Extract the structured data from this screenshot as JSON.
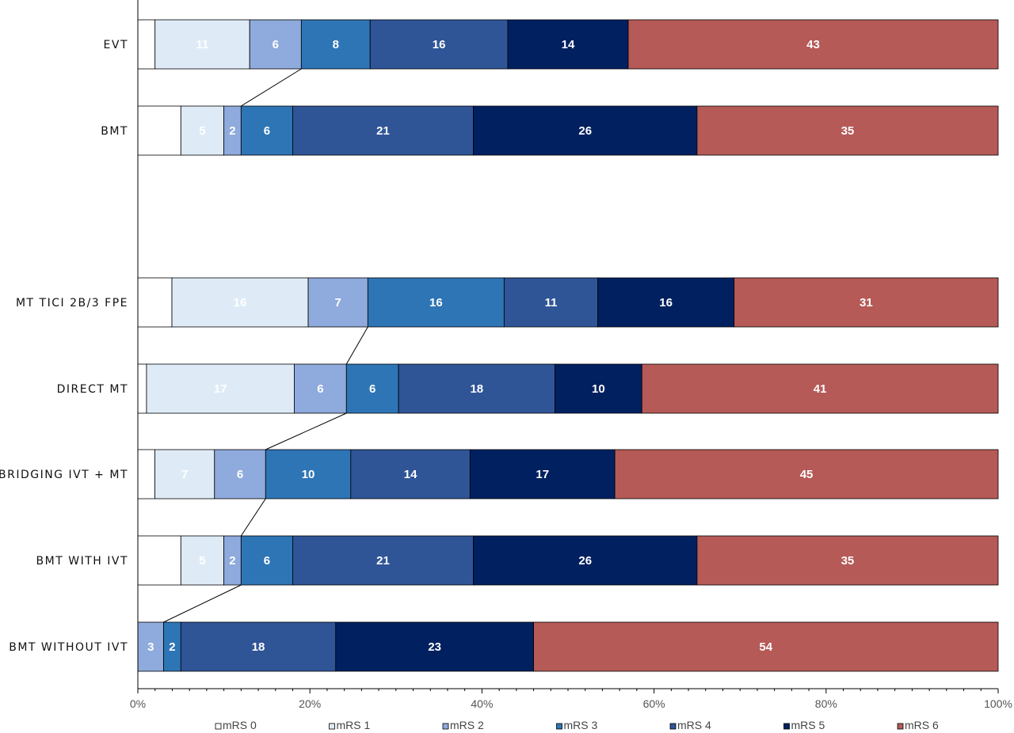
{
  "chart_data": {
    "type": "bar",
    "stacked": true,
    "orientation": "horizontal",
    "percent_scale": true,
    "xlim": [
      0,
      100
    ],
    "x_ticks": [
      "0%",
      "20%",
      "40%",
      "60%",
      "80%",
      "100%"
    ],
    "categories": [
      "EVT",
      "BMT",
      "MT TICI 2B/3 FPE",
      "DIRECT MT",
      "BRIDGING IVT + MT",
      "BMT WITH IVT",
      "BMT WITHOUT IVT"
    ],
    "group_break_after": 1,
    "series": [
      {
        "name": "mRS 0",
        "color": "#ffffff",
        "text_color": "#ffffff",
        "values": [
          2,
          5,
          4,
          1,
          2,
          5,
          0
        ],
        "labels": [
          "",
          "",
          "",
          "",
          "",
          "",
          ""
        ]
      },
      {
        "name": "mRS 1",
        "color": "#deebf7",
        "text_color": "#ffffff",
        "values": [
          11,
          5,
          16,
          17,
          7,
          5,
          0
        ],
        "labels": [
          "11",
          "5",
          "16",
          "17",
          "7",
          "5",
          ""
        ]
      },
      {
        "name": "mRS 2",
        "color": "#8faadc",
        "text_color": "#ffffff",
        "values": [
          6,
          2,
          7,
          6,
          6,
          2,
          3
        ],
        "labels": [
          "6",
          "2",
          "7",
          "6",
          "6",
          "2",
          "3"
        ]
      },
      {
        "name": "mRS 3",
        "color": "#2e75b6",
        "text_color": "#ffffff",
        "values": [
          8,
          6,
          16,
          6,
          10,
          6,
          2
        ],
        "labels": [
          "8",
          "6",
          "16",
          "6",
          "10",
          "6",
          "2"
        ]
      },
      {
        "name": "mRS 4",
        "color": "#2f5597",
        "text_color": "#ffffff",
        "values": [
          16,
          21,
          11,
          18,
          14,
          21,
          18
        ],
        "labels": [
          "16",
          "21",
          "11",
          "18",
          "14",
          "21",
          "18"
        ]
      },
      {
        "name": "mRS 5",
        "color": "#002060",
        "text_color": "#ffffff",
        "values": [
          14,
          26,
          16,
          10,
          17,
          26,
          23
        ],
        "labels": [
          "14",
          "26",
          "16",
          "10",
          "17",
          "26",
          "23"
        ]
      },
      {
        "name": "mRS 6",
        "color": "#b55a57",
        "text_color": "#ffffff",
        "values": [
          43,
          35,
          31,
          41,
          45,
          35,
          54
        ],
        "labels": [
          "43",
          "35",
          "31",
          "41",
          "45",
          "35",
          "54"
        ]
      }
    ],
    "connectors": [
      {
        "from": 0,
        "to": 1,
        "after_series": 2
      },
      {
        "from": 2,
        "to": 3,
        "after_series": 2
      },
      {
        "from": 3,
        "to": 4,
        "after_series": 2
      },
      {
        "from": 4,
        "to": 5,
        "after_series": 2
      },
      {
        "from": 5,
        "to": 6,
        "after_series": 2
      }
    ],
    "legend_position": "bottom",
    "grid": false
  }
}
